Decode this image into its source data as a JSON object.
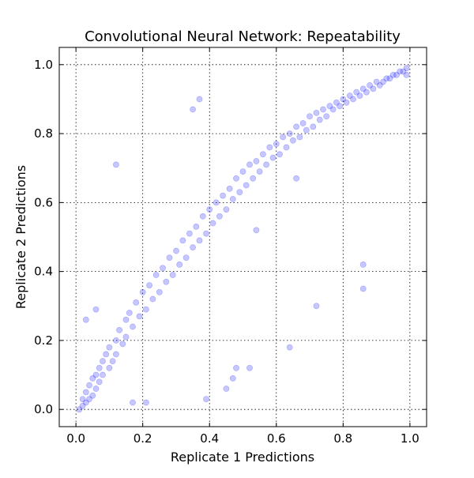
{
  "chart_data": {
    "type": "scatter",
    "title": "Convolutional Neural Network: Repeatability",
    "xlabel": "Replicate 1 Predictions",
    "ylabel": "Replicate 2 Predictions",
    "xlim": [
      -0.05,
      1.05
    ],
    "ylim": [
      -0.05,
      1.05
    ],
    "xticks": [
      "0.0",
      "0.2",
      "0.4",
      "0.6",
      "0.8",
      "1.0"
    ],
    "yticks": [
      "0.0",
      "0.2",
      "0.4",
      "0.6",
      "0.8",
      "1.0"
    ],
    "grid": true,
    "color": "#0000ff",
    "series": [
      {
        "x": [
          0.01,
          0.02,
          0.02,
          0.03,
          0.03,
          0.04,
          0.04,
          0.05,
          0.05,
          0.06,
          0.06,
          0.07,
          0.07,
          0.08,
          0.08,
          0.09,
          0.1,
          0.1,
          0.11,
          0.12,
          0.12,
          0.13,
          0.14,
          0.15,
          0.15,
          0.16,
          0.17,
          0.18,
          0.19,
          0.2,
          0.21,
          0.22,
          0.23,
          0.24,
          0.25,
          0.26,
          0.27,
          0.28,
          0.29,
          0.3,
          0.31,
          0.32,
          0.33,
          0.34,
          0.35,
          0.36,
          0.37,
          0.38,
          0.39,
          0.4,
          0.41,
          0.42,
          0.43,
          0.44,
          0.45,
          0.46,
          0.47,
          0.48,
          0.49,
          0.5,
          0.51,
          0.52,
          0.53,
          0.54,
          0.55,
          0.56,
          0.57,
          0.58,
          0.59,
          0.6,
          0.61,
          0.62,
          0.63,
          0.64,
          0.65,
          0.66,
          0.67,
          0.68,
          0.69,
          0.7,
          0.71,
          0.72,
          0.73,
          0.74,
          0.75,
          0.76,
          0.77,
          0.78,
          0.79,
          0.8,
          0.81,
          0.82,
          0.83,
          0.84,
          0.85,
          0.86,
          0.87,
          0.88,
          0.89,
          0.9,
          0.91,
          0.92,
          0.93,
          0.94,
          0.95,
          0.96,
          0.97,
          0.98,
          0.99,
          0.99,
          0.12,
          0.21,
          0.35,
          0.45,
          0.52,
          0.66,
          0.72,
          0.86,
          0.37,
          0.48,
          0.86,
          0.17,
          0.39,
          0.47,
          0.54,
          0.64,
          0.06,
          0.03
        ],
        "y": [
          0.0,
          0.03,
          0.01,
          0.05,
          0.02,
          0.07,
          0.03,
          0.09,
          0.04,
          0.1,
          0.06,
          0.12,
          0.08,
          0.14,
          0.1,
          0.16,
          0.12,
          0.18,
          0.14,
          0.2,
          0.16,
          0.23,
          0.19,
          0.26,
          0.21,
          0.28,
          0.24,
          0.31,
          0.27,
          0.34,
          0.29,
          0.36,
          0.32,
          0.39,
          0.34,
          0.41,
          0.37,
          0.44,
          0.39,
          0.46,
          0.42,
          0.49,
          0.44,
          0.51,
          0.47,
          0.53,
          0.49,
          0.56,
          0.51,
          0.58,
          0.54,
          0.6,
          0.56,
          0.62,
          0.58,
          0.64,
          0.61,
          0.67,
          0.63,
          0.69,
          0.65,
          0.71,
          0.67,
          0.72,
          0.69,
          0.74,
          0.71,
          0.76,
          0.73,
          0.77,
          0.74,
          0.79,
          0.76,
          0.8,
          0.78,
          0.82,
          0.79,
          0.83,
          0.81,
          0.85,
          0.82,
          0.86,
          0.84,
          0.87,
          0.85,
          0.88,
          0.87,
          0.89,
          0.88,
          0.9,
          0.89,
          0.91,
          0.9,
          0.92,
          0.91,
          0.93,
          0.92,
          0.94,
          0.93,
          0.95,
          0.94,
          0.95,
          0.96,
          0.96,
          0.97,
          0.97,
          0.98,
          0.98,
          0.99,
          0.97,
          0.71,
          0.02,
          0.87,
          0.06,
          0.12,
          0.67,
          0.3,
          0.35,
          0.9,
          0.12,
          0.42,
          0.02,
          0.03,
          0.09,
          0.52,
          0.18,
          0.29,
          0.26
        ]
      }
    ]
  }
}
